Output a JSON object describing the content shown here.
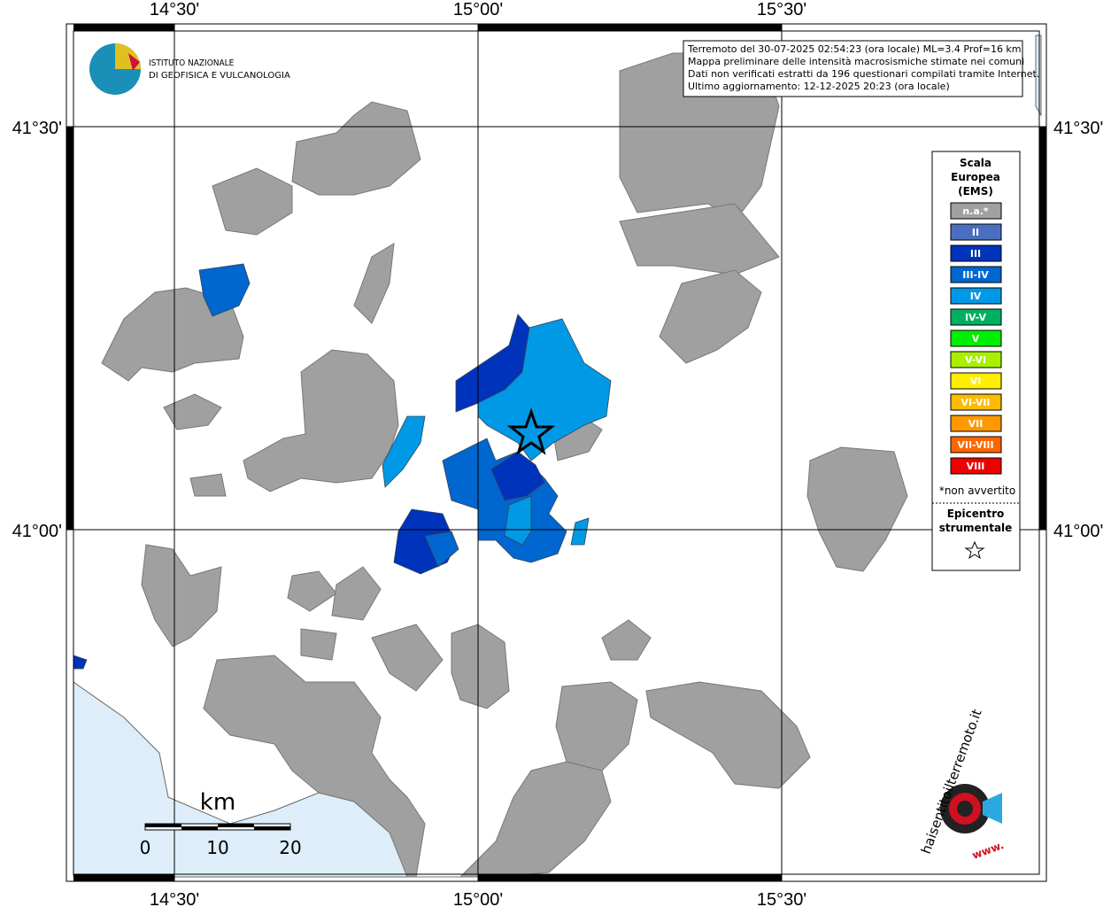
{
  "graticule": {
    "top": [
      "14°30'",
      "15°00'",
      "15°30'"
    ],
    "bottom": [
      "14°30'",
      "15°00'",
      "15°30'"
    ],
    "left": [
      "41°30'",
      "41°00'"
    ],
    "right": [
      "41°30'",
      "41°00'"
    ]
  },
  "logo": {
    "line1": "ISTITUTO NAZIONALE",
    "line2": "DI GEOFISICA E VULCANOLOGIA"
  },
  "info": [
    "Terremoto del 30-07-2025 02:54:23 (ora locale) ML=3.4 Prof=16 km",
    "Mappa preliminare delle intensità macrosismiche stimate nei comuni",
    "Dati non verificati estratti da 196 questionari compilati tramite Internet.",
    "Ultimo aggiornamento: 12-12-2025 20:23 (ora locale)"
  ],
  "legend": {
    "title": [
      "Scala",
      "Europea",
      "(EMS)"
    ],
    "items": [
      {
        "label": "n.a.*",
        "color": "#a0a0a0"
      },
      {
        "label": "II",
        "color": "#4a6fc0"
      },
      {
        "label": "III",
        "color": "#0033bb"
      },
      {
        "label": "III-IV",
        "color": "#0066d0"
      },
      {
        "label": "IV",
        "color": "#0099e6"
      },
      {
        "label": "IV-V",
        "color": "#00b060"
      },
      {
        "label": "V",
        "color": "#00ee00"
      },
      {
        "label": "V-VI",
        "color": "#aaee00"
      },
      {
        "label": "VI",
        "color": "#ffee00"
      },
      {
        "label": "VI-VII",
        "color": "#ffbb00"
      },
      {
        "label": "VII",
        "color": "#ff9900"
      },
      {
        "label": "VII-VIII",
        "color": "#ff6600"
      },
      {
        "label": "VIII",
        "color": "#ee0000"
      }
    ],
    "note": "*non avvertito",
    "epicenter": [
      "Epicentro",
      "strumentale"
    ]
  },
  "scale": {
    "unit": "km",
    "labels": [
      "0",
      "10",
      "20"
    ]
  },
  "brand": {
    "text": "haisentitoilterremoto.it",
    "www": "www."
  }
}
